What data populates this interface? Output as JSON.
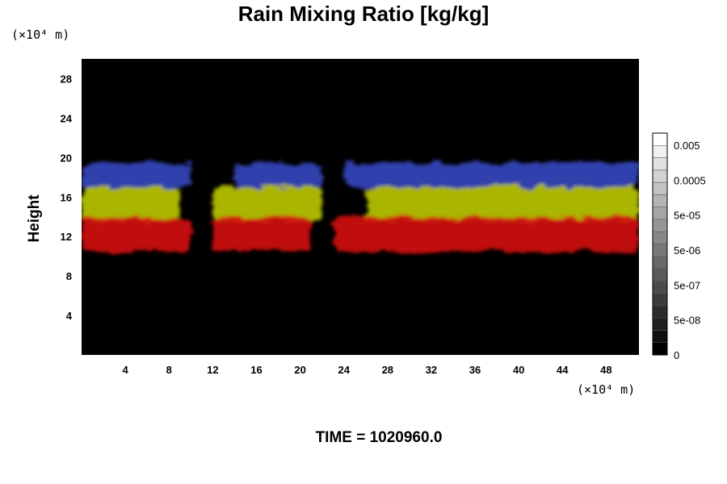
{
  "chart_data": {
    "type": "heatmap",
    "title": "Rain Mixing Ratio [kg/kg]",
    "ylabel": "Height",
    "xlabel": "",
    "x_unit": "(×10⁴ m)",
    "y_unit": "(×10⁴ m)",
    "xlim": [
      0,
      51
    ],
    "ylim": [
      0,
      30
    ],
    "x_ticks": [
      4,
      8,
      12,
      16,
      20,
      24,
      28,
      32,
      36,
      40,
      44,
      48
    ],
    "y_ticks": [
      4,
      8,
      12,
      16,
      20,
      24,
      28
    ],
    "colorbar": {
      "labels": [
        "0.005",
        "0.0005",
        "5e-05",
        "5e-06",
        "5e-07",
        "5e-08",
        "0"
      ],
      "range": [
        0,
        0.05
      ],
      "scale": "log"
    },
    "layers": [
      {
        "color": "#3344bb",
        "height_range": [
          17,
          19.5
        ],
        "x_segments": [
          [
            0,
            10
          ],
          [
            14,
            22
          ],
          [
            24,
            51
          ]
        ]
      },
      {
        "color": "#b8c400",
        "height_range": [
          13.5,
          17
        ],
        "x_segments": [
          [
            0,
            9
          ],
          [
            12,
            22
          ],
          [
            26,
            51
          ]
        ]
      },
      {
        "color": "#d01010",
        "height_range": [
          10.5,
          14
        ],
        "x_segments": [
          [
            0,
            10
          ],
          [
            12,
            21
          ],
          [
            23,
            51
          ]
        ]
      }
    ],
    "colors": {
      "background": "#000000",
      "high_layer": "#3344bb",
      "mid_layer": "#b8c400",
      "low_layer": "#d01010"
    }
  },
  "footer": {
    "time_label": "TIME = 1020960.0"
  }
}
